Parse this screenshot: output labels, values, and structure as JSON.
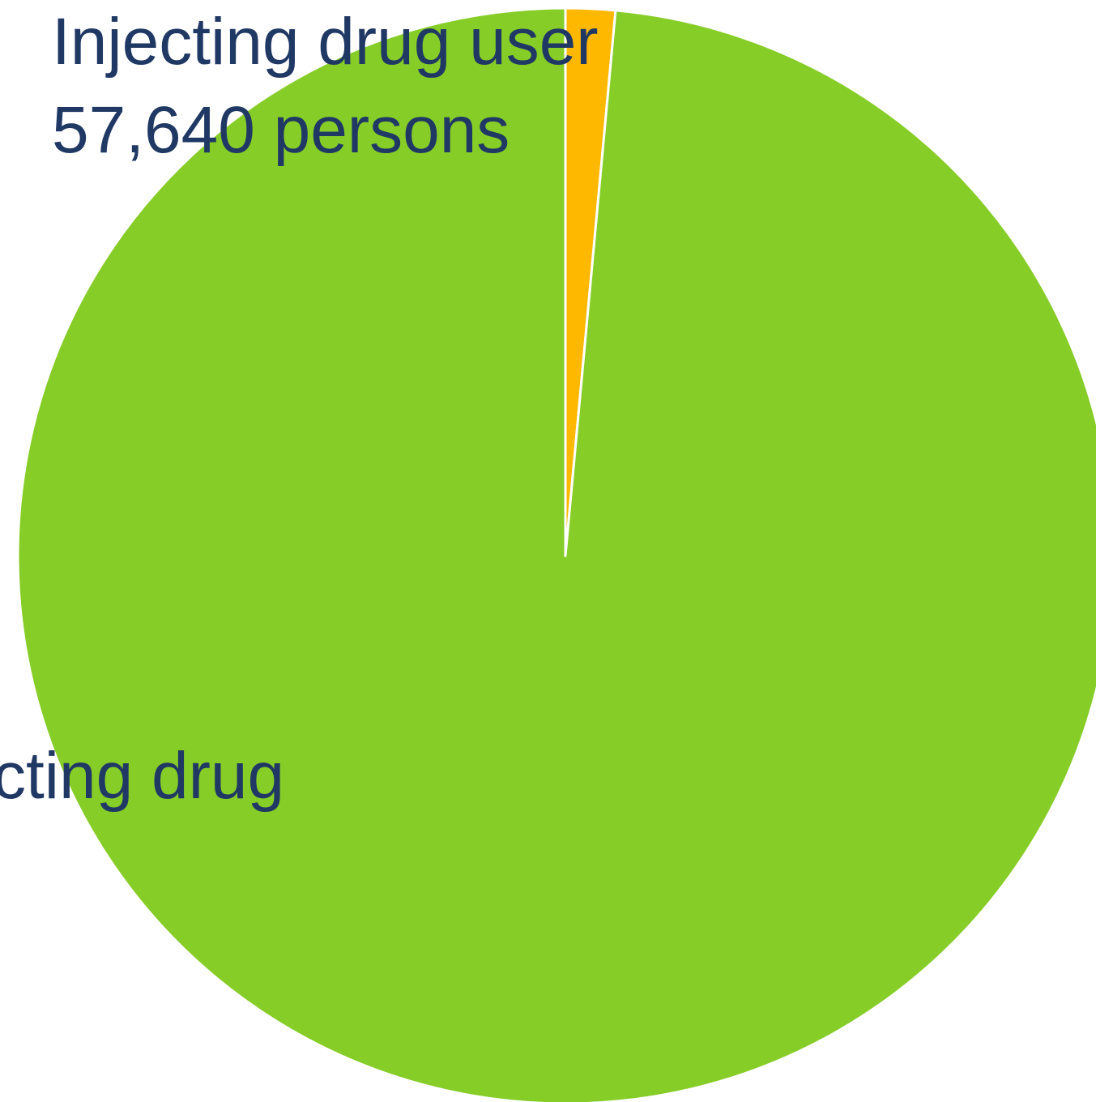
{
  "chart_data": {
    "type": "pie",
    "slices": [
      {
        "label": "Injecting drug user",
        "value_text": "57,640 persons",
        "share": 0.0146,
        "color": "#FFB800"
      },
      {
        "label": "cting drug",
        "value_text": "",
        "share": 0.9854,
        "color": "#86CD28"
      }
    ],
    "start_angle_deg": 0,
    "direction": "clockwise",
    "slice_border_color": "#FFFFFF",
    "label_color": "#203864"
  }
}
